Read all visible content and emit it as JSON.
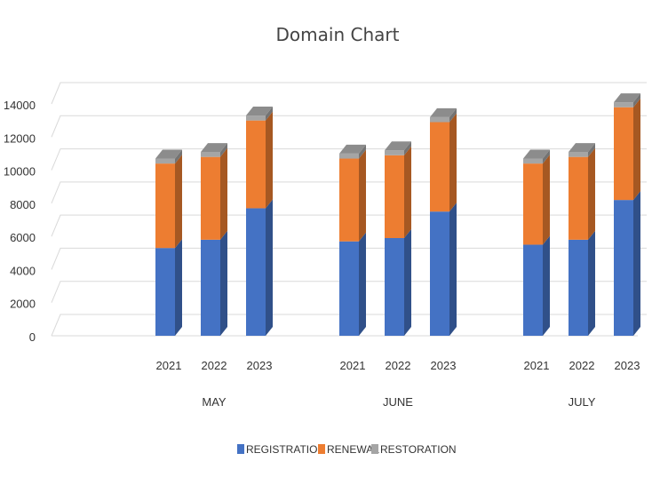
{
  "chart_data": {
    "type": "bar",
    "stacked": true,
    "title": "Domain Chart",
    "groups": [
      "MAY",
      "JUNE",
      "JULY"
    ],
    "categories": [
      "2021",
      "2022",
      "2023"
    ],
    "series": [
      {
        "name": "REGISTRATION",
        "color": "#4472C4",
        "values": [
          [
            5300,
            5800,
            7700
          ],
          [
            5700,
            5900,
            7500
          ],
          [
            5500,
            5800,
            8200
          ]
        ]
      },
      {
        "name": "RENEWAL",
        "color": "#ED7D31",
        "values": [
          [
            5100,
            5000,
            5300
          ],
          [
            5000,
            5000,
            5400
          ],
          [
            4900,
            5000,
            5600
          ]
        ]
      },
      {
        "name": "RESTORATION",
        "color": "#A5A5A5",
        "values": [
          [
            300,
            300,
            300
          ],
          [
            300,
            300,
            300
          ],
          [
            300,
            300,
            300
          ]
        ]
      }
    ],
    "yticks": [
      "0",
      "2000",
      "4000",
      "6000",
      "8000",
      "10000",
      "12000",
      "14000"
    ],
    "ylim": [
      0,
      14000
    ],
    "grid": true,
    "legend": "bottom"
  }
}
